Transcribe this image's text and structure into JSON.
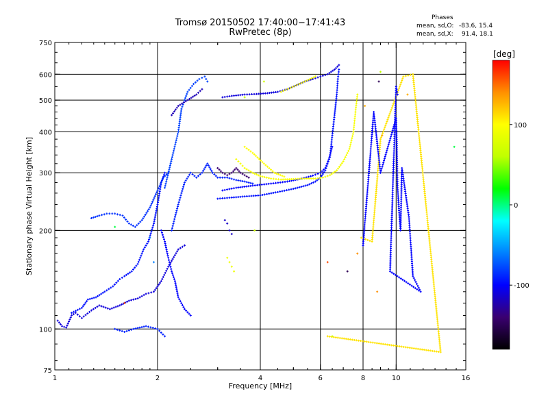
{
  "header": {
    "title": "Tromsø 20150502 17:40:00−17:41:43",
    "subtitle": "RwPretec (8p)"
  },
  "phase_stats": {
    "heading": "Phases",
    "o_label": "mean, sd,O:",
    "o_values": "-83.6, 15.4",
    "x_label": "mean, sd,X:",
    "x_values": "91.4, 18.1"
  },
  "chart_data": {
    "type": "scatter",
    "title": "Tromsø 20150502 17:40:00−17:41:43",
    "subtitle": "RwPretec (8p)",
    "xlabel": "Frequency [MHz]",
    "ylabel": "Stationary phase Virtual Height [km]",
    "xscale": "log",
    "yscale": "log",
    "xlim": [
      1,
      16
    ],
    "ylim": [
      75,
      750
    ],
    "xticks": [
      1,
      2,
      4,
      6,
      8,
      10,
      16
    ],
    "xtick_labels": [
      "1",
      "2",
      "4",
      "6",
      "8",
      "10",
      "16"
    ],
    "xminor": [
      3,
      5,
      7,
      9
    ],
    "yticks": [
      75,
      100,
      200,
      300,
      400,
      500,
      600,
      750
    ],
    "ytick_labels": [
      "75",
      "100",
      "200",
      "300",
      "400",
      "500",
      "600",
      "750"
    ],
    "grid_x": [
      2,
      4,
      6,
      8,
      10
    ],
    "grid_y": [
      100,
      200,
      300,
      400,
      500,
      600
    ],
    "colorbar": {
      "label": "[deg]",
      "range": [
        -180,
        180
      ],
      "ticks": [
        -100,
        0,
        100
      ],
      "tick_labels": [
        "-100",
        "0",
        "100"
      ],
      "colors": [
        "#000000",
        "#3a0070",
        "#0000ff",
        "#0080ff",
        "#00ffff",
        "#00ff00",
        "#c0ff00",
        "#ffff00",
        "#ff9000",
        "#ff0000"
      ]
    },
    "series": [
      {
        "phase": -110,
        "points": [
          [
            1.02,
            106
          ],
          [
            1.05,
            102
          ],
          [
            1.08,
            101
          ],
          [
            1.12,
            110
          ],
          [
            1.15,
            112
          ],
          [
            1.2,
            108
          ],
          [
            1.28,
            114
          ],
          [
            1.35,
            118
          ],
          [
            1.45,
            115
          ],
          [
            1.55,
            118
          ],
          [
            1.65,
            122
          ],
          [
            1.75,
            124
          ],
          [
            1.85,
            128
          ],
          [
            1.95,
            130
          ],
          [
            2.05,
            140
          ],
          [
            2.15,
            155
          ],
          [
            2.3,
            175
          ],
          [
            2.4,
            180
          ]
        ]
      },
      {
        "phase": -95,
        "points": [
          [
            1.12,
            112
          ],
          [
            1.2,
            116
          ],
          [
            1.25,
            123
          ],
          [
            1.32,
            125
          ],
          [
            1.4,
            130
          ],
          [
            1.48,
            135
          ],
          [
            1.55,
            142
          ],
          [
            1.6,
            145
          ],
          [
            1.68,
            150
          ],
          [
            1.75,
            158
          ],
          [
            1.82,
            175
          ],
          [
            1.88,
            185
          ],
          [
            1.95,
            210
          ],
          [
            2.0,
            240
          ],
          [
            2.05,
            280
          ],
          [
            2.1,
            300
          ]
        ]
      },
      {
        "phase": -85,
        "points": [
          [
            1.28,
            218
          ],
          [
            1.35,
            222
          ],
          [
            1.42,
            225
          ],
          [
            1.5,
            225
          ],
          [
            1.58,
            222
          ],
          [
            1.65,
            210
          ],
          [
            1.72,
            205
          ],
          [
            1.8,
            215
          ],
          [
            1.9,
            235
          ],
          [
            2.0,
            265
          ],
          [
            2.08,
            290
          ],
          [
            2.15,
            300
          ]
        ]
      },
      {
        "phase": -80,
        "points": [
          [
            2.1,
            270
          ],
          [
            2.2,
            330
          ],
          [
            2.3,
            400
          ],
          [
            2.35,
            470
          ],
          [
            2.4,
            500
          ],
          [
            2.45,
            530
          ],
          [
            2.55,
            560
          ],
          [
            2.65,
            580
          ],
          [
            2.75,
            590
          ],
          [
            2.8,
            570
          ]
        ]
      },
      {
        "phase": -90,
        "points": [
          [
            2.2,
            200
          ],
          [
            2.25,
            220
          ],
          [
            2.3,
            240
          ],
          [
            2.35,
            260
          ],
          [
            2.4,
            280
          ],
          [
            2.5,
            300
          ],
          [
            2.6,
            290
          ],
          [
            2.7,
            300
          ],
          [
            2.8,
            320
          ],
          [
            2.9,
            300
          ],
          [
            3.0,
            290
          ],
          [
            3.2,
            290
          ],
          [
            3.4,
            285
          ],
          [
            3.6,
            282
          ],
          [
            3.8,
            278
          ]
        ]
      },
      {
        "phase": -140,
        "points": [
          [
            3.0,
            310
          ],
          [
            3.1,
            300
          ],
          [
            3.2,
            295
          ],
          [
            3.3,
            300
          ],
          [
            3.4,
            310
          ],
          [
            3.5,
            300
          ],
          [
            3.6,
            295
          ],
          [
            3.7,
            290
          ]
        ]
      },
      {
        "phase": -110,
        "points": [
          [
            3.1,
            510
          ],
          [
            3.3,
            515
          ],
          [
            3.6,
            520
          ],
          [
            3.9,
            522
          ],
          [
            4.2,
            525
          ],
          [
            4.5,
            530
          ],
          [
            4.8,
            540
          ],
          [
            5.1,
            555
          ],
          [
            5.4,
            570
          ],
          [
            5.7,
            580
          ],
          [
            6.0,
            590
          ],
          [
            6.3,
            600
          ],
          [
            6.6,
            620
          ],
          [
            6.8,
            640
          ]
        ]
      },
      {
        "phase": -95,
        "points": [
          [
            3.0,
            250
          ],
          [
            3.3,
            252
          ],
          [
            3.6,
            254
          ],
          [
            4.0,
            256
          ],
          [
            4.5,
            262
          ],
          [
            5.0,
            268
          ],
          [
            5.5,
            275
          ],
          [
            5.8,
            282
          ],
          [
            6.0,
            290
          ],
          [
            6.2,
            305
          ],
          [
            6.4,
            335
          ],
          [
            6.5,
            390
          ],
          [
            6.6,
            450
          ],
          [
            6.7,
            520
          ],
          [
            6.75,
            580
          ],
          [
            6.8,
            620
          ]
        ]
      },
      {
        "phase": -100,
        "points": [
          [
            3.1,
            265
          ],
          [
            3.4,
            270
          ],
          [
            3.8,
            274
          ],
          [
            4.3,
            278
          ],
          [
            4.8,
            282
          ],
          [
            5.3,
            288
          ],
          [
            5.7,
            294
          ],
          [
            6.0,
            300
          ],
          [
            6.2,
            310
          ],
          [
            6.35,
            330
          ],
          [
            6.5,
            360
          ]
        ]
      },
      {
        "phase": 95,
        "points": [
          [
            3.4,
            330
          ],
          [
            3.5,
            320
          ],
          [
            3.6,
            310
          ],
          [
            3.8,
            300
          ],
          [
            4.0,
            293
          ],
          [
            4.3,
            288
          ],
          [
            4.6,
            286
          ],
          [
            5.0,
            287
          ],
          [
            5.4,
            288
          ],
          [
            5.8,
            288
          ],
          [
            6.1,
            290
          ],
          [
            6.4,
            295
          ],
          [
            6.7,
            305
          ],
          [
            7.0,
            325
          ],
          [
            7.3,
            355
          ],
          [
            7.5,
            400
          ],
          [
            7.6,
            460
          ],
          [
            7.7,
            520
          ]
        ]
      },
      {
        "phase": 100,
        "points": [
          [
            3.6,
            360
          ],
          [
            3.8,
            345
          ],
          [
            4.1,
            320
          ],
          [
            4.4,
            300
          ],
          [
            4.7,
            292
          ]
        ]
      },
      {
        "phase": 90,
        "points": [
          [
            3.2,
            165
          ],
          [
            3.25,
            160
          ],
          [
            3.3,
            155
          ],
          [
            3.35,
            150
          ]
        ]
      },
      {
        "phase": 95,
        "points": [
          [
            4.6,
            530
          ],
          [
            4.9,
            545
          ],
          [
            5.2,
            560
          ],
          [
            5.5,
            575
          ],
          [
            5.8,
            590
          ]
        ]
      },
      {
        "phase": -115,
        "points": [
          [
            3.15,
            215
          ],
          [
            3.2,
            210
          ],
          [
            3.25,
            200
          ],
          [
            3.3,
            195
          ]
        ]
      },
      {
        "phase": -100,
        "points": [
          [
            2.5,
            110
          ],
          [
            2.4,
            115
          ],
          [
            2.3,
            125
          ],
          [
            2.25,
            140
          ],
          [
            2.2,
            150
          ],
          [
            2.15,
            165
          ],
          [
            2.1,
            185
          ],
          [
            2.05,
            200
          ]
        ]
      },
      {
        "phase": -90,
        "points": [
          [
            1.5,
            100
          ],
          [
            1.6,
            98
          ],
          [
            1.7,
            100
          ],
          [
            1.85,
            102
          ],
          [
            2.0,
            100
          ],
          [
            2.1,
            95
          ]
        ]
      },
      {
        "phase": -120,
        "points": [
          [
            2.2,
            450
          ],
          [
            2.3,
            480
          ],
          [
            2.45,
            500
          ],
          [
            2.6,
            520
          ],
          [
            2.7,
            540
          ]
        ]
      },
      {
        "phase": 110,
        "points": [
          [
            7.9,
            190
          ],
          [
            8.5,
            185
          ],
          [
            9.0,
            380
          ],
          [
            10.5,
            590
          ],
          [
            11.2,
            600
          ],
          [
            13.5,
            85
          ],
          [
            6.3,
            95
          ]
        ]
      },
      {
        "phase": 130,
        "points": [
          [
            8.1,
            480
          ],
          [
            9.1,
            390
          ],
          [
            10.8,
            520
          ]
        ]
      },
      {
        "phase": -100,
        "points": [
          [
            8.0,
            180
          ],
          [
            8.6,
            460
          ],
          [
            9.0,
            300
          ],
          [
            10.0,
            440
          ],
          [
            10.1,
            270
          ],
          [
            10.2,
            230
          ],
          [
            10.3,
            200
          ],
          [
            10.4,
            310
          ],
          [
            10.9,
            220
          ],
          [
            11.2,
            145
          ],
          [
            11.8,
            130
          ],
          [
            9.6,
            150
          ],
          [
            10.0,
            550
          ],
          [
            10.1,
            520
          ]
        ]
      },
      {
        "phase": 10,
        "points": [
          [
            14.8,
            360
          ],
          [
            1.5,
            205
          ]
        ]
      },
      {
        "phase": 160,
        "points": [
          [
            6.3,
            160
          ],
          [
            1.6,
            120
          ]
        ]
      },
      {
        "phase": -60,
        "points": [
          [
            1.9,
            190
          ],
          [
            1.95,
            160
          ]
        ]
      },
      {
        "phase": -150,
        "points": [
          [
            7.2,
            150
          ],
          [
            8.9,
            570
          ]
        ]
      },
      {
        "phase": 70,
        "points": [
          [
            3.85,
            200
          ],
          [
            4.1,
            570
          ],
          [
            6.5,
            95
          ]
        ]
      },
      {
        "phase": 140,
        "points": [
          [
            7.7,
            170
          ],
          [
            8.8,
            130
          ]
        ]
      },
      {
        "phase": 60,
        "points": [
          [
            3.6,
            510
          ],
          [
            9.0,
            610
          ]
        ]
      }
    ]
  }
}
